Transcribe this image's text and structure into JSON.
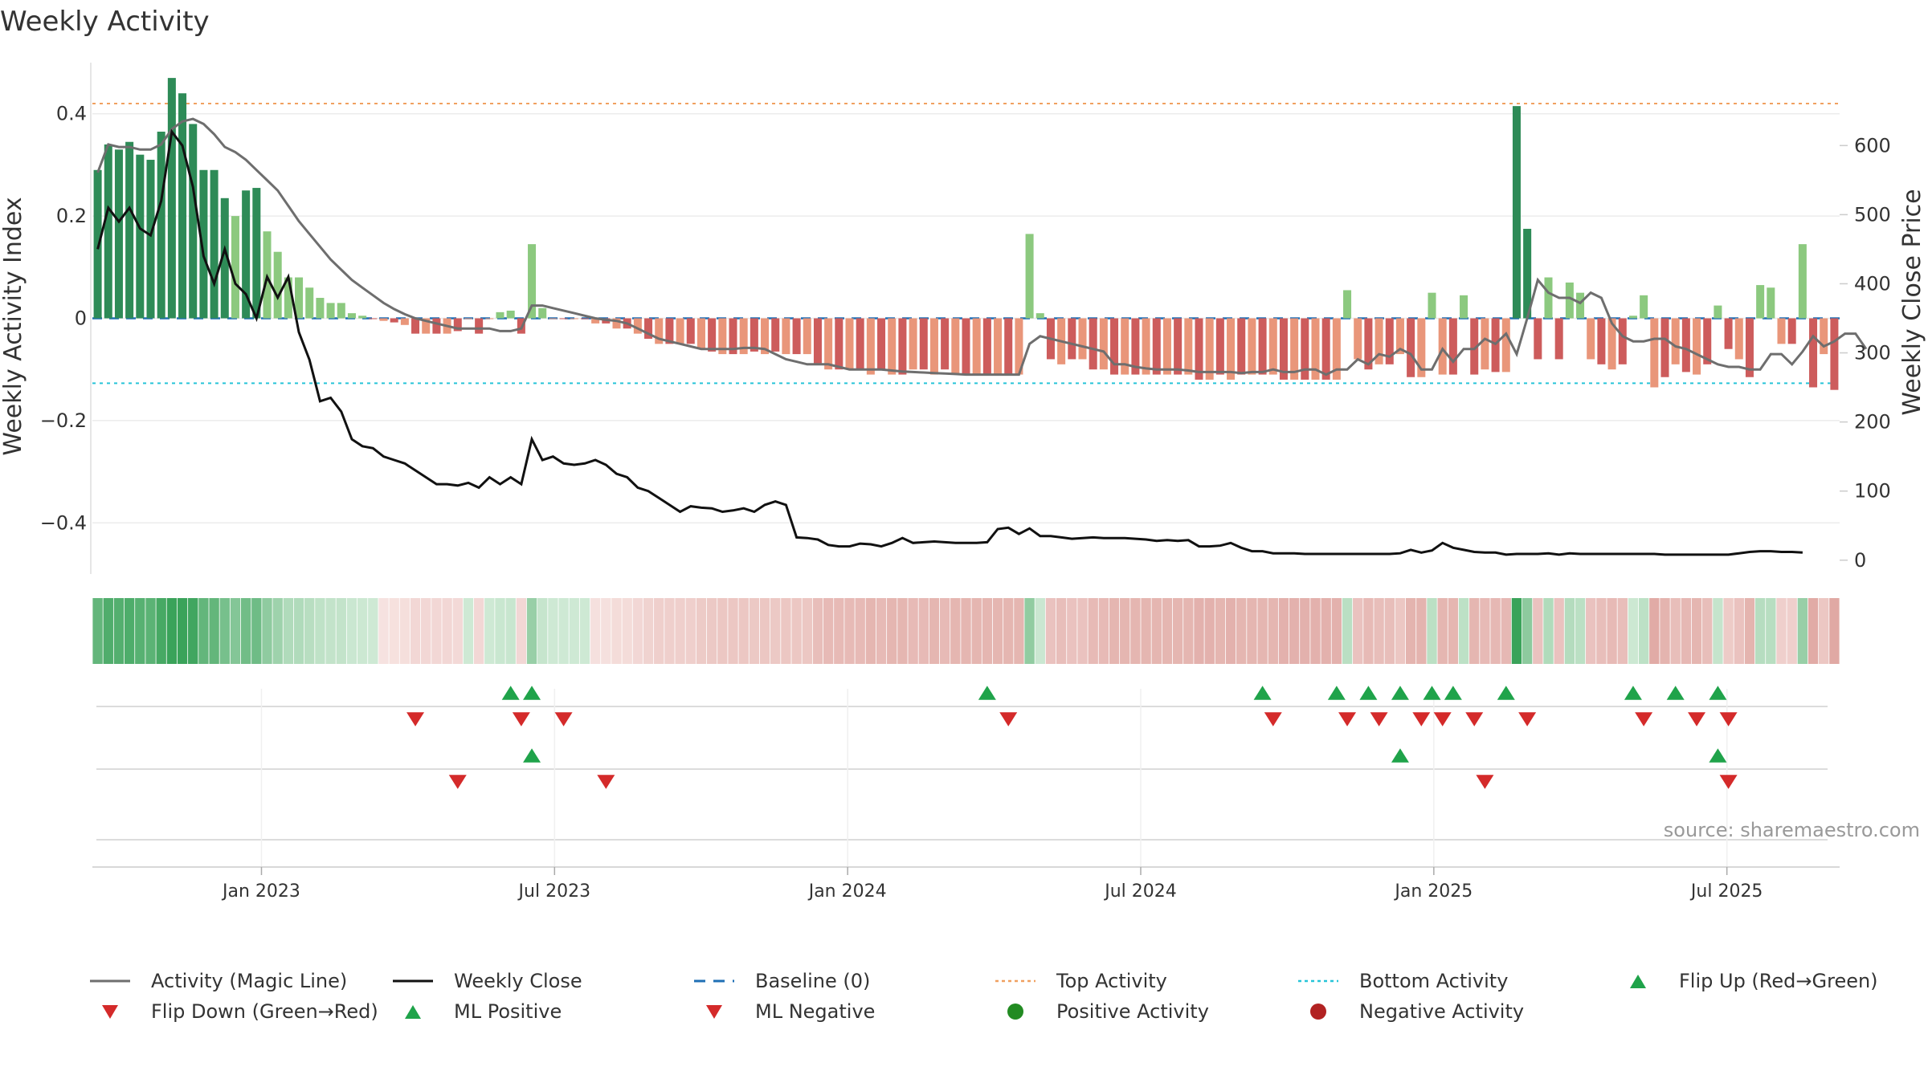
{
  "chart_data": {
    "type": "bar",
    "title": "Weekly Activity",
    "ylabel_left": "Weekly Activity Index",
    "ylabel_right": "Weekly Close Price",
    "ylim_left": [
      -0.5,
      0.5
    ],
    "ylim_right": [
      -20,
      720
    ],
    "yticks_left": [
      {
        "value": 0.4,
        "label": "0.4"
      },
      {
        "value": 0.2,
        "label": "0.2"
      },
      {
        "value": 0,
        "label": "0"
      },
      {
        "value": -0.2,
        "label": "−0.2"
      },
      {
        "value": -0.4,
        "label": "−0.4"
      }
    ],
    "yticks_right": [
      600,
      500,
      400,
      300,
      200,
      100,
      0
    ],
    "x_start_week": 0,
    "x_end_week": 155,
    "xticks": [
      {
        "label": "Jan 2023",
        "week": 15
      },
      {
        "label": "Jul 2023",
        "week": 41
      },
      {
        "label": "Jan 2024",
        "week": 67
      },
      {
        "label": "Jul 2024",
        "week": 93
      },
      {
        "label": "Jan 2025",
        "week": 119
      },
      {
        "label": "Jul 2025",
        "week": 145
      }
    ],
    "top_activity": 0.42,
    "bottom_activity": -0.127,
    "activity_bars": [
      0.29,
      0.34,
      0.33,
      0.345,
      0.32,
      0.31,
      0.365,
      0.47,
      0.44,
      0.38,
      0.29,
      0.29,
      0.235,
      0.2,
      0.25,
      0.255,
      0.17,
      0.13,
      0.08,
      0.08,
      0.06,
      0.04,
      0.03,
      0.03,
      0.01,
      0.005,
      0.0,
      -0.005,
      -0.008,
      -0.013,
      -0.03,
      -0.03,
      -0.03,
      -0.03,
      -0.025,
      0.0,
      -0.03,
      0.0,
      0.012,
      0.015,
      -0.03,
      0.145,
      0.02,
      0.0,
      0.0,
      0.0,
      0.0,
      -0.01,
      -0.01,
      -0.02,
      -0.02,
      -0.03,
      -0.04,
      -0.05,
      -0.05,
      -0.05,
      -0.05,
      -0.06,
      -0.065,
      -0.07,
      -0.07,
      -0.07,
      -0.065,
      -0.07,
      -0.065,
      -0.07,
      -0.07,
      -0.07,
      -0.09,
      -0.1,
      -0.1,
      -0.1,
      -0.1,
      -0.11,
      -0.1,
      -0.11,
      -0.11,
      -0.1,
      -0.1,
      -0.11,
      -0.1,
      -0.11,
      -0.11,
      -0.11,
      -0.11,
      -0.11,
      -0.11,
      -0.11,
      0.165,
      0.01,
      -0.08,
      -0.09,
      -0.08,
      -0.08,
      -0.1,
      -0.1,
      -0.11,
      -0.11,
      -0.11,
      -0.11,
      -0.11,
      -0.11,
      -0.11,
      -0.11,
      -0.12,
      -0.12,
      -0.11,
      -0.12,
      -0.11,
      -0.11,
      -0.11,
      -0.11,
      -0.12,
      -0.12,
      -0.12,
      -0.12,
      -0.12,
      -0.12,
      0.055,
      -0.08,
      -0.1,
      -0.09,
      -0.09,
      -0.07,
      -0.115,
      -0.115,
      0.05,
      -0.11,
      -0.11,
      0.045,
      -0.11,
      -0.1,
      -0.105,
      -0.105,
      0.415,
      0.175,
      -0.08,
      0.08,
      -0.08,
      0.07,
      0.05,
      -0.08,
      -0.09,
      -0.1,
      -0.09,
      0.005,
      0.045,
      -0.135,
      -0.115,
      -0.09,
      -0.105,
      -0.11,
      -0.09,
      0.025,
      -0.06,
      -0.08,
      -0.115,
      0.065,
      0.06,
      -0.05,
      -0.05,
      0.145,
      -0.135,
      -0.07,
      -0.14
    ],
    "magic_line": [
      0.285,
      0.34,
      0.335,
      0.335,
      0.33,
      0.33,
      0.34,
      0.37,
      0.385,
      0.39,
      0.38,
      0.36,
      0.335,
      0.325,
      0.31,
      0.29,
      0.27,
      0.25,
      0.22,
      0.19,
      0.165,
      0.14,
      0.115,
      0.095,
      0.075,
      0.06,
      0.045,
      0.03,
      0.018,
      0.008,
      0.0,
      -0.005,
      -0.01,
      -0.015,
      -0.02,
      -0.02,
      -0.02,
      -0.02,
      -0.025,
      -0.025,
      -0.02,
      0.025,
      0.025,
      0.02,
      0.015,
      0.01,
      0.005,
      0.0,
      -0.003,
      -0.005,
      -0.01,
      -0.02,
      -0.03,
      -0.04,
      -0.045,
      -0.05,
      -0.055,
      -0.06,
      -0.06,
      -0.06,
      -0.06,
      -0.058,
      -0.058,
      -0.06,
      -0.07,
      -0.08,
      -0.085,
      -0.09,
      -0.09,
      -0.09,
      -0.095,
      -0.1,
      -0.1,
      -0.1,
      -0.1,
      -0.102,
      -0.104,
      -0.105,
      -0.106,
      -0.107,
      -0.108,
      -0.109,
      -0.11,
      -0.11,
      -0.11,
      -0.11,
      -0.11,
      -0.11,
      -0.05,
      -0.035,
      -0.04,
      -0.045,
      -0.05,
      -0.055,
      -0.06,
      -0.065,
      -0.09,
      -0.09,
      -0.095,
      -0.098,
      -0.1,
      -0.1,
      -0.1,
      -0.102,
      -0.105,
      -0.105,
      -0.105,
      -0.105,
      -0.107,
      -0.105,
      -0.105,
      -0.1,
      -0.105,
      -0.105,
      -0.1,
      -0.1,
      -0.11,
      -0.1,
      -0.1,
      -0.08,
      -0.09,
      -0.07,
      -0.075,
      -0.06,
      -0.07,
      -0.1,
      -0.1,
      -0.06,
      -0.085,
      -0.06,
      -0.06,
      -0.04,
      -0.05,
      -0.03,
      -0.07,
      0.0,
      0.075,
      0.05,
      0.04,
      0.04,
      0.03,
      0.05,
      0.04,
      -0.01,
      -0.035,
      -0.045,
      -0.045,
      -0.04,
      -0.04,
      -0.055,
      -0.06,
      -0.07,
      -0.08,
      -0.09,
      -0.095,
      -0.095,
      -0.1,
      -0.1,
      -0.07,
      -0.07,
      -0.09,
      -0.065,
      -0.035,
      -0.055,
      -0.045,
      -0.03,
      -0.03,
      -0.06
    ],
    "weekly_close": [
      450,
      510,
      490,
      510,
      480,
      470,
      520,
      620,
      600,
      540,
      440,
      400,
      450,
      400,
      385,
      350,
      410,
      380,
      410,
      330,
      290,
      230,
      235,
      215,
      175,
      165,
      162,
      150,
      145,
      140,
      130,
      120,
      110,
      110,
      108,
      112,
      105,
      120,
      110,
      120,
      110,
      175,
      145,
      150,
      140,
      138,
      140,
      145,
      138,
      125,
      120,
      105,
      100,
      90,
      80,
      70,
      78,
      76,
      75,
      70,
      72,
      75,
      70,
      80,
      85,
      80,
      33,
      32,
      30,
      22,
      20,
      20,
      24,
      23,
      20,
      25,
      32,
      25,
      26,
      27,
      26,
      25,
      25,
      25,
      26,
      45,
      47,
      38,
      46,
      35,
      35,
      33,
      31,
      32,
      33,
      32,
      32,
      32,
      31,
      30,
      28,
      29,
      28,
      29,
      20,
      20,
      21,
      25,
      18,
      13,
      13,
      10,
      10,
      10,
      9,
      9,
      9,
      9,
      9,
      9,
      9,
      9,
      9,
      10,
      15,
      11,
      14,
      25,
      18,
      15,
      12,
      11,
      11,
      8,
      9,
      9,
      9,
      10,
      8,
      10,
      9,
      9,
      9,
      9,
      9,
      9,
      9,
      9,
      8,
      8,
      8,
      8,
      8,
      8,
      8,
      10,
      12,
      13,
      13,
      12,
      12,
      11
    ],
    "flips": {
      "row1_up_weeks": [
        39,
        41,
        84,
        110,
        117,
        120,
        123,
        126,
        128,
        133,
        145,
        149,
        153
      ],
      "row1_down_weeks": [
        30,
        40,
        44,
        86,
        111,
        118,
        121,
        125,
        127,
        130,
        135,
        146,
        151,
        154
      ],
      "row2_up_weeks": [
        41,
        123,
        153
      ],
      "row2_down_weeks": [
        34,
        48,
        131,
        154
      ]
    },
    "source_note": "source: sharemaestro.com",
    "colors": {
      "strong_pos": "#2e8b57",
      "light_pos": "#8cc97f",
      "strong_neg": "#cd5c5c",
      "light_neg": "#e9967a",
      "magic_line": "#6e6e6e",
      "close_line": "#111111",
      "baseline": "#1f6fb5",
      "top_line": "#f0a060",
      "bottom_line": "#27c4d8",
      "flip_up": "#1fa34a",
      "flip_down": "#d42a2a",
      "pos_marker": "#228b22",
      "neg_marker": "#b22222",
      "grid": "#ececec",
      "text": "#333333"
    },
    "legend": [
      {
        "label": "Activity (Magic Line)",
        "kind": "line",
        "color": "#6e6e6e"
      },
      {
        "label": "Weekly Close",
        "kind": "line",
        "color": "#111111"
      },
      {
        "label": "Baseline (0)",
        "kind": "dash",
        "color": "#1f6fb5"
      },
      {
        "label": "Top Activity",
        "kind": "dot",
        "color": "#f0a060"
      },
      {
        "label": "Bottom Activity",
        "kind": "dot",
        "color": "#27c4d8"
      },
      {
        "label": "Flip Up (Red→Green)",
        "kind": "tri-up",
        "color": "#1fa34a"
      },
      {
        "label": "Flip Down (Green→Red)",
        "kind": "tri-down",
        "color": "#d42a2a"
      },
      {
        "label": "ML Positive",
        "kind": "tri-up",
        "color": "#1fa34a"
      },
      {
        "label": "ML Negative",
        "kind": "tri-down",
        "color": "#d42a2a"
      },
      {
        "label": "Positive Activity",
        "kind": "circle",
        "color": "#228b22"
      },
      {
        "label": "Negative Activity",
        "kind": "circle",
        "color": "#b22222"
      }
    ]
  }
}
